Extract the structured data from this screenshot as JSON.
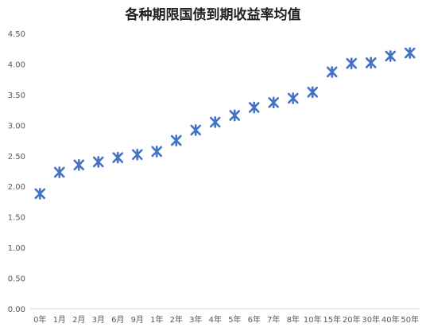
{
  "chart_data": {
    "type": "scatter",
    "title": "各种期限国债到期收益率均值",
    "categories": [
      "0年",
      "1月",
      "2月",
      "3月",
      "6月",
      "9月",
      "1年",
      "2年",
      "3年",
      "4年",
      "5年",
      "6年",
      "7年",
      "8年",
      "10年",
      "15年",
      "20年",
      "30年",
      "40年",
      "50年"
    ],
    "series": [
      {
        "values": [
          1.88,
          2.23,
          2.35,
          2.4,
          2.47,
          2.52,
          2.57,
          2.75,
          2.92,
          3.05,
          3.16,
          3.29,
          3.37,
          3.44,
          3.54,
          3.87,
          4.01,
          4.02,
          4.13,
          4.18
        ]
      }
    ],
    "xlabel": "",
    "ylabel": "",
    "ylim": [
      0,
      4.5
    ],
    "yticks": [
      "0.00",
      "0.50",
      "1.00",
      "1.50",
      "2.00",
      "2.50",
      "3.00",
      "3.50",
      "4.00",
      "4.50"
    ],
    "grid": false,
    "legend": "none",
    "marker": "asterisk",
    "marker_color": "#4472C4"
  }
}
